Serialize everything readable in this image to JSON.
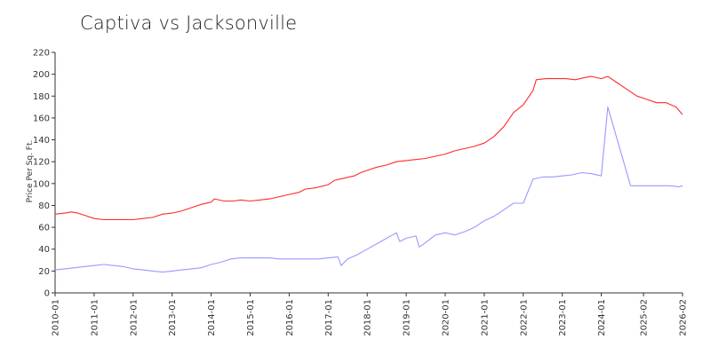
{
  "chart_data": {
    "type": "line",
    "title": "Captiva vs Jacksonville",
    "ylabel": "Price Per Sq. Ft.",
    "xlabel": "",
    "ylim": [
      0,
      220
    ],
    "yticks": [
      0,
      20,
      40,
      60,
      80,
      100,
      120,
      140,
      160,
      180,
      200,
      220
    ],
    "xlim": [
      "2010-01",
      "2026-02"
    ],
    "xticks": [
      "2010-01",
      "2011-01",
      "2012-01",
      "2013-01",
      "2014-01",
      "2015-01",
      "2016-01",
      "2017-01",
      "2018-01",
      "2019-01",
      "2020-01",
      "2021-01",
      "2022-01",
      "2023-01",
      "2024-01",
      "2025-02",
      "2026-02"
    ],
    "grid": false,
    "series": [
      {
        "color": "#ff2a2a",
        "points": [
          [
            "2010-01",
            72
          ],
          [
            "2010-04",
            73
          ],
          [
            "2010-06",
            74
          ],
          [
            "2010-08",
            73
          ],
          [
            "2010-10",
            71
          ],
          [
            "2011-01",
            68
          ],
          [
            "2011-04",
            67
          ],
          [
            "2011-07",
            67
          ],
          [
            "2011-10",
            67
          ],
          [
            "2012-01",
            67
          ],
          [
            "2012-04",
            68
          ],
          [
            "2012-07",
            69
          ],
          [
            "2012-10",
            72
          ],
          [
            "2013-01",
            73
          ],
          [
            "2013-04",
            75
          ],
          [
            "2013-07",
            78
          ],
          [
            "2013-10",
            81
          ],
          [
            "2014-01",
            83
          ],
          [
            "2014-02",
            86
          ],
          [
            "2014-05",
            84
          ],
          [
            "2014-08",
            84
          ],
          [
            "2014-10",
            85
          ],
          [
            "2015-01",
            84
          ],
          [
            "2015-04",
            85
          ],
          [
            "2015-07",
            86
          ],
          [
            "2015-10",
            88
          ],
          [
            "2016-01",
            90
          ],
          [
            "2016-04",
            92
          ],
          [
            "2016-06",
            95
          ],
          [
            "2016-09",
            96
          ],
          [
            "2017-01",
            99
          ],
          [
            "2017-03",
            103
          ],
          [
            "2017-06",
            105
          ],
          [
            "2017-09",
            107
          ],
          [
            "2017-11",
            110
          ],
          [
            "2018-01",
            112
          ],
          [
            "2018-04",
            115
          ],
          [
            "2018-07",
            117
          ],
          [
            "2018-10",
            120
          ],
          [
            "2019-01",
            121
          ],
          [
            "2019-04",
            122
          ],
          [
            "2019-07",
            123
          ],
          [
            "2019-10",
            125
          ],
          [
            "2020-01",
            127
          ],
          [
            "2020-04",
            130
          ],
          [
            "2020-07",
            132
          ],
          [
            "2020-10",
            134
          ],
          [
            "2021-01",
            137
          ],
          [
            "2021-04",
            143
          ],
          [
            "2021-07",
            152
          ],
          [
            "2021-10",
            165
          ],
          [
            "2022-01",
            172
          ],
          [
            "2022-04",
            185
          ],
          [
            "2022-05",
            195
          ],
          [
            "2022-08",
            196
          ],
          [
            "2022-11",
            196
          ],
          [
            "2023-02",
            196
          ],
          [
            "2023-05",
            195
          ],
          [
            "2023-08",
            197
          ],
          [
            "2023-10",
            198
          ],
          [
            "2024-01",
            196
          ],
          [
            "2024-03",
            198
          ],
          [
            "2024-06",
            192
          ],
          [
            "2024-09",
            186
          ],
          [
            "2024-12",
            180
          ],
          [
            "2025-03",
            177
          ],
          [
            "2025-06",
            174
          ],
          [
            "2025-09",
            174
          ],
          [
            "2025-12",
            170
          ],
          [
            "2026-02",
            163
          ]
        ]
      },
      {
        "color": "#9999ff",
        "points": [
          [
            "2010-01",
            21
          ],
          [
            "2010-04",
            22
          ],
          [
            "2010-07",
            23
          ],
          [
            "2010-10",
            24
          ],
          [
            "2011-01",
            25
          ],
          [
            "2011-04",
            26
          ],
          [
            "2011-07",
            25
          ],
          [
            "2011-10",
            24
          ],
          [
            "2012-01",
            22
          ],
          [
            "2012-04",
            21
          ],
          [
            "2012-07",
            20
          ],
          [
            "2012-10",
            19
          ],
          [
            "2013-01",
            20
          ],
          [
            "2013-04",
            21
          ],
          [
            "2013-07",
            22
          ],
          [
            "2013-10",
            23
          ],
          [
            "2014-01",
            26
          ],
          [
            "2014-04",
            28
          ],
          [
            "2014-07",
            31
          ],
          [
            "2014-10",
            32
          ],
          [
            "2015-01",
            32
          ],
          [
            "2015-04",
            32
          ],
          [
            "2015-07",
            32
          ],
          [
            "2015-10",
            31
          ],
          [
            "2016-01",
            31
          ],
          [
            "2016-04",
            31
          ],
          [
            "2016-07",
            31
          ],
          [
            "2016-10",
            31
          ],
          [
            "2017-01",
            32
          ],
          [
            "2017-04",
            33
          ],
          [
            "2017-05",
            25
          ],
          [
            "2017-07",
            31
          ],
          [
            "2017-10",
            35
          ],
          [
            "2018-01",
            40
          ],
          [
            "2018-04",
            45
          ],
          [
            "2018-07",
            50
          ],
          [
            "2018-10",
            55
          ],
          [
            "2018-11",
            47
          ],
          [
            "2019-01",
            50
          ],
          [
            "2019-04",
            52
          ],
          [
            "2019-05",
            42
          ],
          [
            "2019-07",
            46
          ],
          [
            "2019-10",
            53
          ],
          [
            "2020-01",
            55
          ],
          [
            "2020-04",
            53
          ],
          [
            "2020-07",
            56
          ],
          [
            "2020-10",
            60
          ],
          [
            "2021-01",
            66
          ],
          [
            "2021-04",
            70
          ],
          [
            "2021-07",
            76
          ],
          [
            "2021-10",
            82
          ],
          [
            "2022-01",
            82
          ],
          [
            "2022-04",
            104
          ],
          [
            "2022-07",
            106
          ],
          [
            "2022-10",
            106
          ],
          [
            "2023-01",
            107
          ],
          [
            "2023-04",
            108
          ],
          [
            "2023-07",
            110
          ],
          [
            "2023-10",
            109
          ],
          [
            "2024-01",
            107
          ],
          [
            "2024-03",
            170
          ],
          [
            "2024-10",
            98
          ],
          [
            "2025-02",
            98
          ],
          [
            "2025-06",
            98
          ],
          [
            "2025-10",
            98
          ],
          [
            "2026-01",
            97
          ],
          [
            "2026-02",
            98
          ]
        ]
      }
    ]
  }
}
